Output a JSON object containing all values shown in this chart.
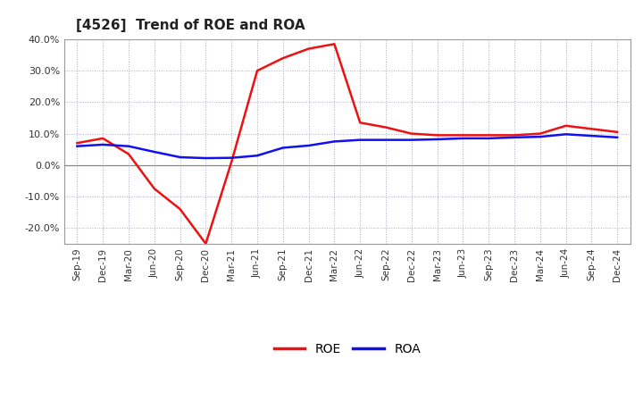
{
  "title": "[4526]  Trend of ROE and ROA",
  "x_labels": [
    "Sep-19",
    "Dec-19",
    "Mar-20",
    "Jun-20",
    "Sep-20",
    "Dec-20",
    "Mar-21",
    "Jun-21",
    "Sep-21",
    "Dec-21",
    "Mar-22",
    "Jun-22",
    "Sep-22",
    "Dec-22",
    "Mar-23",
    "Jun-23",
    "Sep-23",
    "Dec-23",
    "Mar-24",
    "Jun-24",
    "Sep-24",
    "Dec-24"
  ],
  "roe": [
    7.0,
    8.5,
    3.5,
    -7.5,
    -14.0,
    -25.0,
    1.0,
    30.0,
    34.0,
    37.0,
    38.5,
    13.5,
    12.0,
    10.0,
    9.5,
    9.5,
    9.5,
    9.5,
    10.0,
    12.5,
    11.5,
    10.5
  ],
  "roa": [
    6.0,
    6.5,
    6.0,
    4.2,
    2.5,
    2.2,
    2.3,
    3.0,
    5.5,
    6.2,
    7.5,
    8.0,
    8.0,
    8.0,
    8.2,
    8.5,
    8.5,
    8.8,
    9.0,
    9.8,
    9.3,
    8.8
  ],
  "roe_color": "#ee1111",
  "roa_color": "#1111ee",
  "ylim": [
    -25,
    40
  ],
  "yticks": [
    -20,
    -10,
    0,
    10,
    20,
    30,
    40
  ],
  "grid_color": "#aaaacc",
  "bg_color": "#ffffff",
  "zero_line_color": "#888888"
}
